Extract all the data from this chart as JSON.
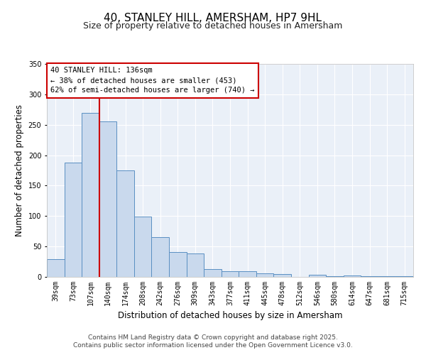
{
  "title": "40, STANLEY HILL, AMERSHAM, HP7 9HL",
  "subtitle": "Size of property relative to detached houses in Amersham",
  "xlabel": "Distribution of detached houses by size in Amersham",
  "ylabel": "Number of detached properties",
  "bar_labels": [
    "39sqm",
    "73sqm",
    "107sqm",
    "140sqm",
    "174sqm",
    "208sqm",
    "242sqm",
    "276sqm",
    "309sqm",
    "343sqm",
    "377sqm",
    "411sqm",
    "445sqm",
    "478sqm",
    "512sqm",
    "546sqm",
    "580sqm",
    "614sqm",
    "647sqm",
    "681sqm",
    "715sqm"
  ],
  "bar_heights": [
    29,
    188,
    269,
    255,
    175,
    99,
    65,
    41,
    38,
    13,
    9,
    9,
    6,
    5,
    0,
    4,
    1,
    2,
    1,
    1,
    1
  ],
  "bar_color": "#c9d9ed",
  "bar_edge_color": "#5a8fc2",
  "bar_width": 1.0,
  "vline_color": "#cc0000",
  "ylim": [
    0,
    350
  ],
  "yticks": [
    0,
    50,
    100,
    150,
    200,
    250,
    300,
    350
  ],
  "annotation_title": "40 STANLEY HILL: 136sqm",
  "annotation_line1": "← 38% of detached houses are smaller (453)",
  "annotation_line2": "62% of semi-detached houses are larger (740) →",
  "annotation_box_color": "#ffffff",
  "annotation_box_edge": "#cc0000",
  "footer1": "Contains HM Land Registry data © Crown copyright and database right 2025.",
  "footer2": "Contains public sector information licensed under the Open Government Licence v3.0.",
  "bg_color": "#ffffff",
  "plot_bg_color": "#eaf0f8",
  "grid_color": "#ffffff",
  "title_fontsize": 11,
  "subtitle_fontsize": 9,
  "axis_label_fontsize": 8.5,
  "tick_fontsize": 7,
  "annotation_fontsize": 7.5,
  "footer_fontsize": 6.5
}
